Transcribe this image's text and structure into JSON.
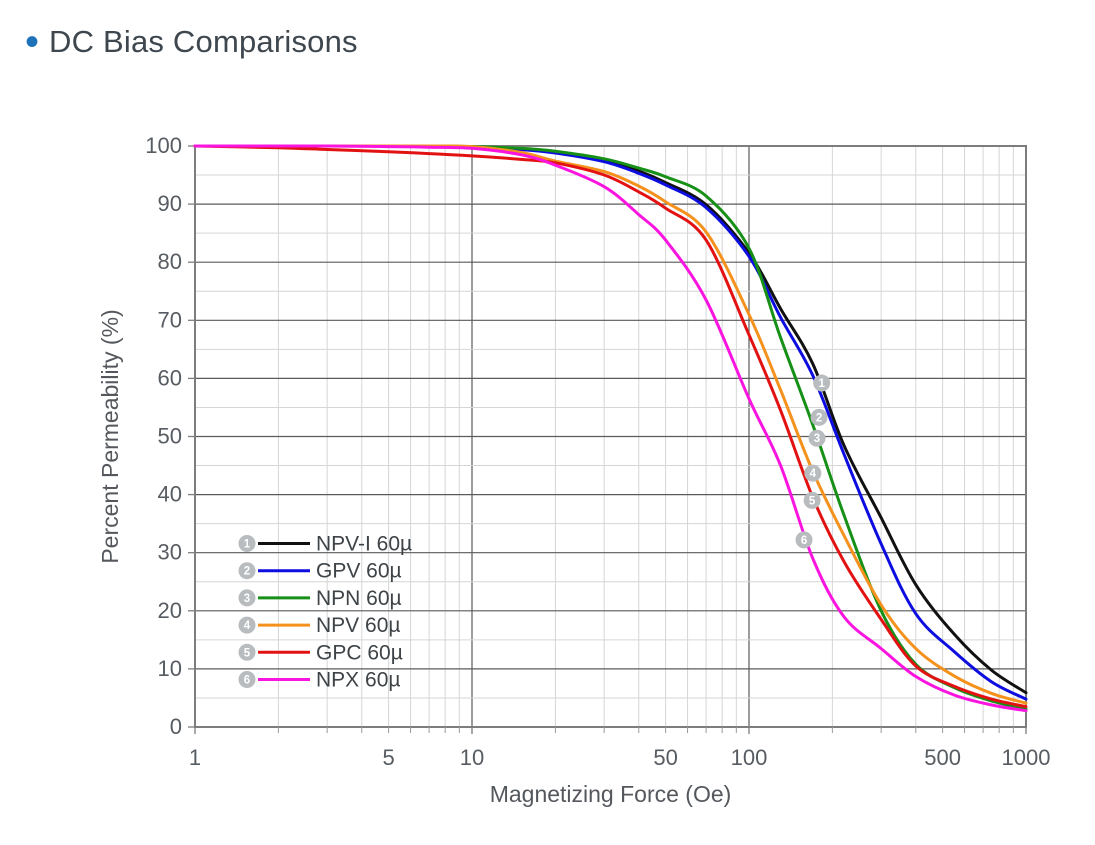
{
  "page": {
    "title": "DC Bias Comparisons",
    "title_color": "#3e464e",
    "bullet_color": "#1e73b8"
  },
  "chart_data": {
    "type": "line",
    "title": "DC Bias Comparisons",
    "xlabel": "Magnetizing Force (Oe)",
    "ylabel": "Percent Permeability (%)",
    "x_scale": "log",
    "xlim": [
      1,
      1000
    ],
    "ylim": [
      0,
      100
    ],
    "x_tick_labels": [
      1,
      5,
      10,
      50,
      100,
      500,
      1000
    ],
    "x_major_gridlines": [
      10,
      100
    ],
    "y_major_step": 10,
    "y_minor_step": 5,
    "grid": true,
    "legend_position": "inside lower-left",
    "x": [
      1,
      2,
      3,
      5,
      7,
      10,
      15,
      20,
      30,
      40,
      50,
      70,
      100,
      130,
      170,
      220,
      300,
      400,
      550,
      750,
      1000
    ],
    "series": [
      {
        "num": "1",
        "name": "NPV-I 60µ",
        "color": "#111111",
        "values": [
          100,
          100,
          100,
          100,
          99.9,
          99.8,
          99.5,
          99.0,
          97.6,
          95.7,
          93.7,
          89.9,
          81.6,
          72.0,
          62.5,
          48.5,
          36.0,
          24.5,
          16.0,
          9.8,
          5.9
        ]
      },
      {
        "num": "2",
        "name": "GPV 60µ",
        "color": "#0d0de0",
        "values": [
          100,
          100,
          100,
          100,
          99.9,
          99.8,
          99.4,
          98.8,
          97.3,
          95.3,
          93.3,
          89.4,
          81.0,
          70.5,
          60.5,
          47.0,
          31.5,
          19.5,
          13.0,
          7.8,
          4.8
        ]
      },
      {
        "num": "3",
        "name": "NPN 60µ",
        "color": "#169016",
        "values": [
          100,
          100,
          100,
          100,
          100,
          99.9,
          99.6,
          99.1,
          97.8,
          96.2,
          94.7,
          91.4,
          82.4,
          67.0,
          52.0,
          36.5,
          20.0,
          10.8,
          6.8,
          4.5,
          3.1
        ]
      },
      {
        "num": "4",
        "name": "NPV 60µ",
        "color": "#f5921e",
        "values": [
          100,
          100,
          100,
          100,
          100,
          99.9,
          98.9,
          97.4,
          95.6,
          93.1,
          90.4,
          85.2,
          71.0,
          58.0,
          44.0,
          33.0,
          21.0,
          13.5,
          8.8,
          5.8,
          4.1
        ]
      },
      {
        "num": "5",
        "name": "GPC 60µ",
        "color": "#e31212",
        "values": [
          100,
          99.7,
          99.4,
          99.0,
          98.7,
          98.3,
          97.7,
          97.1,
          95.0,
          92.1,
          89.3,
          83.8,
          67.5,
          54.5,
          39.5,
          28.5,
          18.5,
          10.5,
          7.0,
          4.8,
          3.5
        ]
      },
      {
        "num": "6",
        "name": "NPX 60µ",
        "color": "#fa14e0",
        "values": [
          100,
          100,
          100,
          99.9,
          99.8,
          99.6,
          98.5,
          96.7,
          93.0,
          88.2,
          83.8,
          73.5,
          56.5,
          45.0,
          29.0,
          19.0,
          13.5,
          8.7,
          5.5,
          3.8,
          2.8
        ]
      }
    ],
    "curve_markers": [
      {
        "label": "1",
        "x_oe": 183,
        "y_pct": 59.2
      },
      {
        "label": "2",
        "x_oe": 179,
        "y_pct": 53.3
      },
      {
        "label": "3",
        "x_oe": 176,
        "y_pct": 49.7
      },
      {
        "label": "4",
        "x_oe": 170,
        "y_pct": 43.7
      },
      {
        "label": "5",
        "x_oe": 169,
        "y_pct": 39.0
      },
      {
        "label": "6",
        "x_oe": 158,
        "y_pct": 32.2
      }
    ],
    "y_tick_labels": [
      "0",
      "10",
      "20",
      "30",
      "40",
      "50",
      "60",
      "70",
      "80",
      "90",
      "100"
    ]
  },
  "style": {
    "grid_major": "#5a5a5a",
    "grid_minor": "#d6d6d6",
    "frame": "#7d7d7d",
    "tick_label": "#575c62",
    "axis_title": "#54585d",
    "legend_text": "#3e4347",
    "marker_fill": "#b9bcbe",
    "marker_text": "#ffffff"
  }
}
